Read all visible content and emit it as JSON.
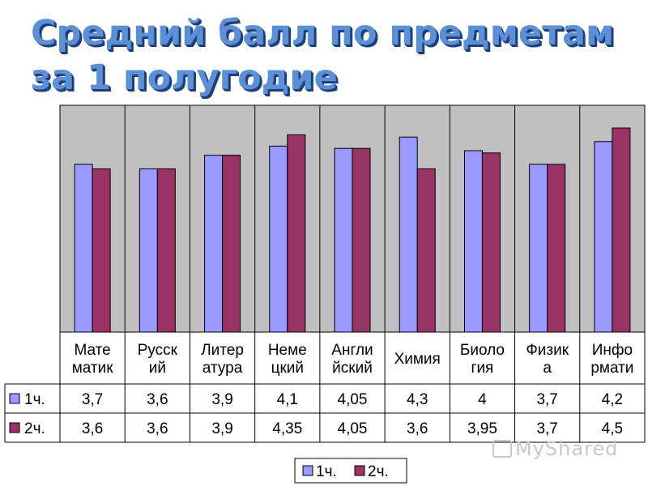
{
  "chart_data": {
    "type": "bar",
    "title_lines": [
      "Средний балл по предметам",
      "за 1 полугодие"
    ],
    "categories": [
      [
        "Мате",
        "матик"
      ],
      [
        "Русск",
        "ий"
      ],
      [
        "Литер",
        "атура"
      ],
      [
        "Неме",
        "цкий"
      ],
      [
        "Англи",
        "йский"
      ],
      [
        "Химия"
      ],
      [
        "Биоло",
        "гия"
      ],
      [
        "Физик",
        "а"
      ],
      [
        "Инфо",
        "рмати"
      ]
    ],
    "series": [
      {
        "name": "1ч.",
        "color": "#9999ff",
        "values": [
          3.7,
          3.6,
          3.9,
          4.1,
          4.05,
          4.3,
          4,
          3.7,
          4.2
        ],
        "labels": [
          "3,7",
          "3,6",
          "3,9",
          "4,1",
          "4,05",
          "4,3",
          "4",
          "3,7",
          "4,2"
        ]
      },
      {
        "name": "2ч.",
        "color": "#993366",
        "values": [
          3.6,
          3.6,
          3.9,
          4.35,
          4.05,
          3.6,
          3.95,
          3.7,
          4.5
        ],
        "labels": [
          "3,6",
          "3,6",
          "3,9",
          "4,35",
          "4,05",
          "3,6",
          "3,95",
          "3,7",
          "4,5"
        ]
      }
    ],
    "ylim": [
      0,
      5
    ],
    "plot_background": "#c0c0c0",
    "grid": false,
    "data_table": true,
    "legend_position": "bottom"
  },
  "watermark": {
    "text": "MyShared"
  }
}
